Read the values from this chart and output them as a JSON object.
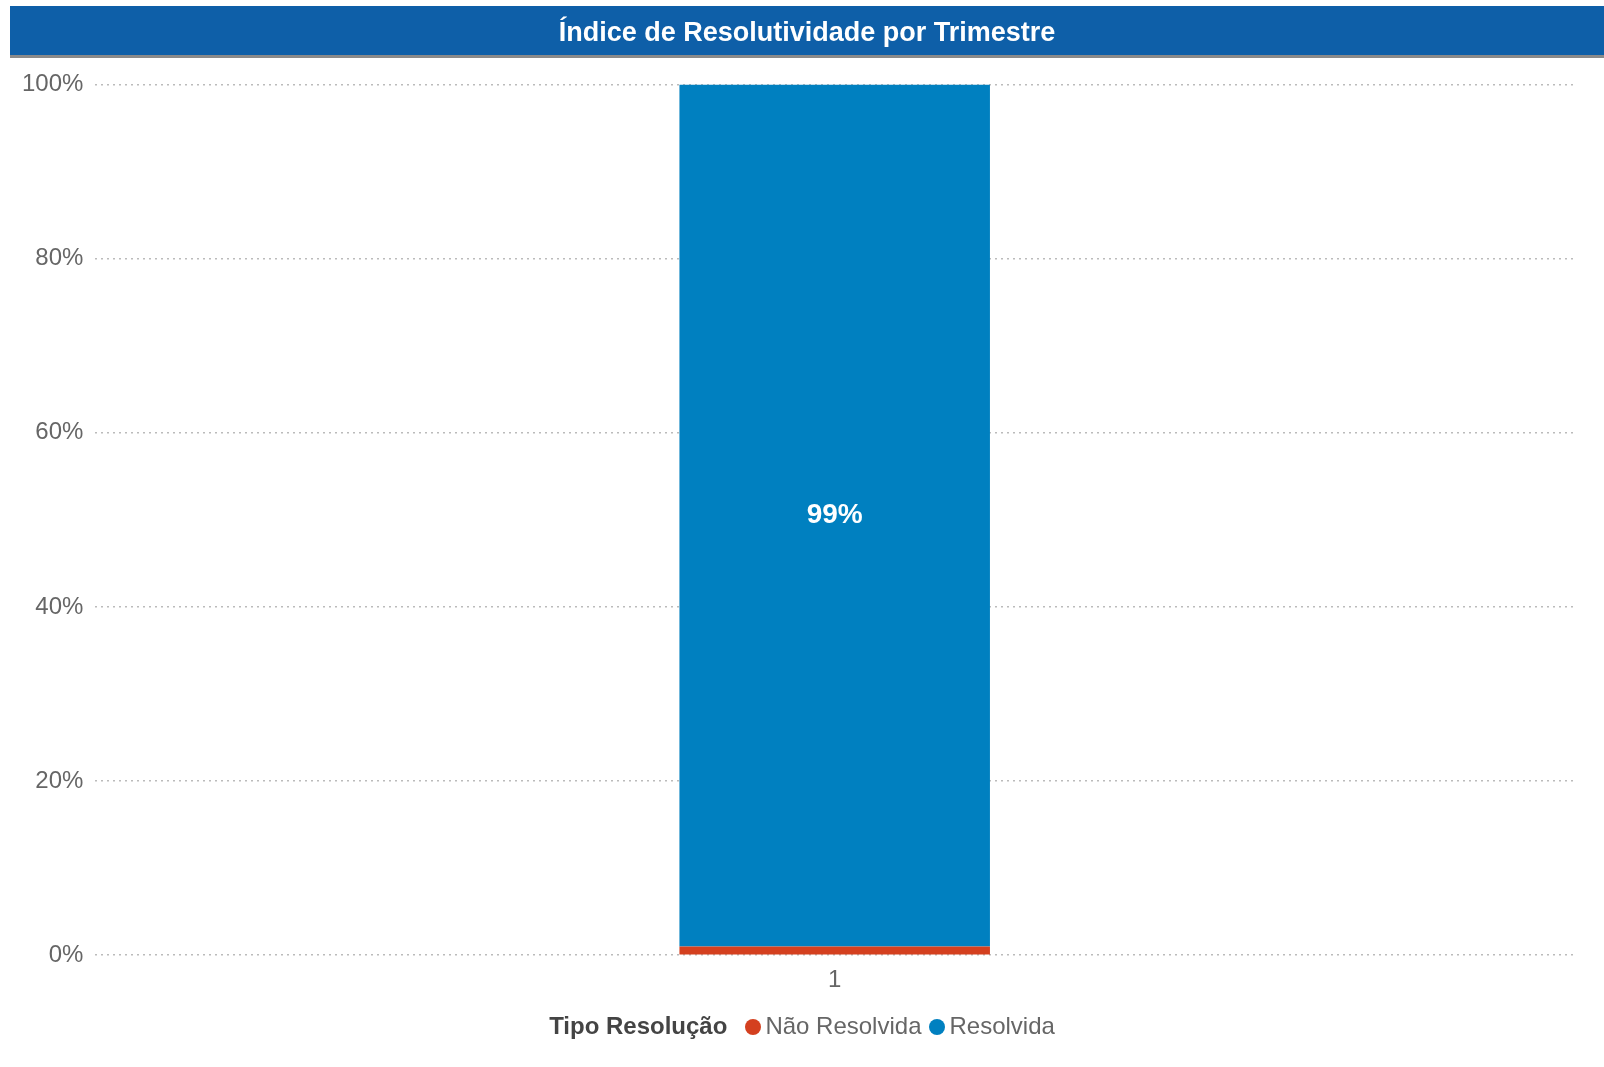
{
  "chart_data": {
    "type": "bar",
    "title": "Índice de Resolutividade por Trimestre",
    "categories": [
      "1"
    ],
    "stacked": true,
    "series": [
      {
        "name": "Não Resolvida",
        "color": "#d4401f",
        "values": [
          1
        ]
      },
      {
        "name": "Resolvida",
        "color": "#0080c0",
        "values": [
          99
        ],
        "value_labels": [
          "99%"
        ]
      }
    ],
    "ylim": [
      0,
      100
    ],
    "yticks": [
      {
        "value": 0,
        "label": "0%"
      },
      {
        "value": 20,
        "label": "20%"
      },
      {
        "value": 40,
        "label": "40%"
      },
      {
        "value": 60,
        "label": "60%"
      },
      {
        "value": 80,
        "label": "80%"
      },
      {
        "value": 100,
        "label": "100%"
      }
    ],
    "grid": "y",
    "legend": "bottom",
    "legend_title": "Tipo Resolução"
  }
}
